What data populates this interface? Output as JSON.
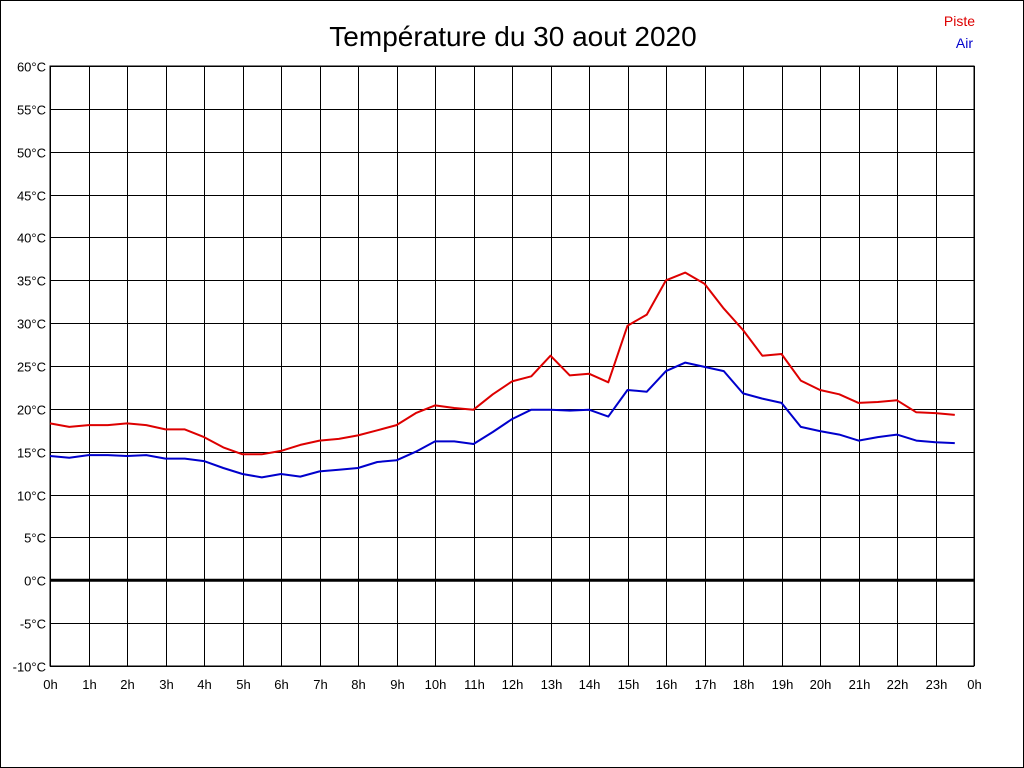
{
  "chart_data": {
    "type": "line",
    "title": "Température du 30 aout 2020",
    "xlabel": "",
    "ylabel": "",
    "x_unit": "hours",
    "xlim": [
      0,
      24
    ],
    "ylim": [
      -10,
      60
    ],
    "grid": true,
    "legend_position": "top-right",
    "y_ticks": [
      "60°C",
      "55°C",
      "50°C",
      "45°C",
      "40°C",
      "35°C",
      "30°C",
      "25°C",
      "20°C",
      "15°C",
      "10°C",
      "5°C",
      "0°C",
      "-5°C",
      "-10°C"
    ],
    "x_ticks": [
      "0h",
      "1h",
      "2h",
      "3h",
      "4h",
      "5h",
      "6h",
      "7h",
      "8h",
      "9h",
      "10h",
      "11h",
      "12h",
      "13h",
      "14h",
      "15h",
      "16h",
      "17h",
      "18h",
      "19h",
      "20h",
      "21h",
      "22h",
      "23h",
      "0h"
    ],
    "zero_line": 0,
    "x": [
      0,
      0.5,
      1,
      1.5,
      2,
      2.5,
      3,
      3.5,
      4,
      4.5,
      5,
      5.5,
      6,
      6.5,
      7,
      7.5,
      8,
      8.5,
      9,
      9.5,
      10,
      10.5,
      11,
      11.5,
      12,
      12.5,
      13,
      13.5,
      14,
      14.5,
      15,
      15.5,
      16,
      16.5,
      17,
      17.5,
      18,
      18.5,
      19,
      19.5,
      20,
      20.5,
      21,
      21.5,
      22,
      22.5,
      23,
      23.5
    ],
    "series": [
      {
        "name": "Piste",
        "color": "#dd0000",
        "values": [
          18.3,
          17.9,
          18.1,
          18.1,
          18.3,
          18.1,
          17.6,
          17.6,
          16.7,
          15.5,
          14.7,
          14.7,
          15.1,
          15.8,
          16.3,
          16.5,
          16.9,
          17.5,
          18.1,
          19.5,
          20.4,
          20.1,
          19.9,
          21.7,
          23.2,
          23.8,
          26.2,
          23.9,
          24.1,
          23.1,
          29.7,
          31.0,
          35.0,
          35.9,
          34.6,
          31.7,
          29.2,
          26.2,
          26.4,
          23.3,
          22.2,
          21.7,
          20.7,
          20.8,
          21.0,
          19.6,
          19.5,
          19.3
        ]
      },
      {
        "name": "Air",
        "color": "#0000cc",
        "values": [
          14.5,
          14.3,
          14.6,
          14.6,
          14.5,
          14.6,
          14.2,
          14.2,
          13.9,
          13.1,
          12.4,
          12.0,
          12.4,
          12.1,
          12.7,
          12.9,
          13.1,
          13.8,
          14.0,
          15.0,
          16.2,
          16.2,
          15.9,
          17.3,
          18.8,
          19.9,
          19.9,
          19.8,
          19.9,
          19.1,
          22.2,
          22.0,
          24.4,
          25.4,
          24.9,
          24.4,
          21.8,
          21.2,
          20.7,
          17.9,
          17.4,
          17.0,
          16.3,
          16.7,
          17.0,
          16.3,
          16.1,
          16.0
        ]
      }
    ]
  }
}
